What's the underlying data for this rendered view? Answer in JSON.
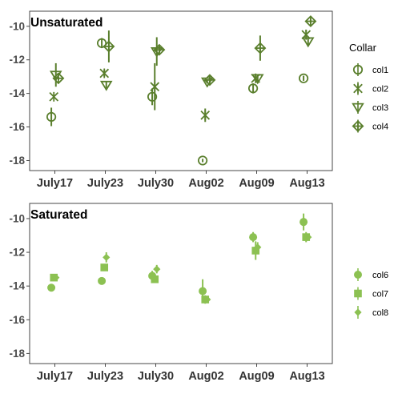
{
  "chart_data": [
    {
      "type": "scatter",
      "title": "Unsaturated",
      "xlabel": "",
      "ylabel": "",
      "categories": [
        "July17",
        "July23",
        "July30",
        "Aug02",
        "Aug09",
        "Aug13"
      ],
      "ylim": [
        -18.6,
        -9.1
      ],
      "yticks": [
        -18,
        -16,
        -14,
        -12,
        -10
      ],
      "ytick_labels": [
        "-18",
        "-16",
        "-14",
        "-12",
        "-10"
      ],
      "grid": false,
      "color": "#5a7f2d",
      "legend": {
        "title": "Collar",
        "position": "right"
      },
      "series": [
        {
          "name": "col1",
          "marker": "circle-open",
          "values": [
            -15.4,
            -11.0,
            -14.2,
            -18.0,
            -13.7,
            -13.1
          ],
          "err": [
            0.55,
            0.3,
            0.5,
            0.1,
            0.3,
            0.15
          ]
        },
        {
          "name": "col2",
          "marker": "asterisk",
          "values": [
            -14.2,
            -12.8,
            -13.6,
            -15.3,
            -13.1,
            -10.5
          ],
          "err": [
            0.1,
            0.2,
            1.4,
            0.4,
            0.2,
            0.3
          ]
        },
        {
          "name": "col3",
          "marker": "triangle-down-open",
          "values": [
            -12.9,
            -13.5,
            -11.5,
            -13.3,
            -13.1,
            -10.9
          ],
          "err": [
            0.7,
            0.2,
            0.85,
            0.1,
            0.2,
            0.2
          ]
        },
        {
          "name": "col4",
          "marker": "diamond-plus",
          "values": [
            -13.1,
            -11.2,
            -11.4,
            -13.2,
            -11.3,
            -9.7
          ],
          "err": [
            0.1,
            0.95,
            0.2,
            0.1,
            0.75,
            0.1
          ]
        }
      ]
    },
    {
      "type": "scatter",
      "title": "Saturated",
      "xlabel": "",
      "ylabel": "",
      "categories": [
        "July17",
        "July23",
        "July30",
        "Aug02",
        "Aug09",
        "Aug13"
      ],
      "ylim": [
        -18.6,
        -9.1
      ],
      "yticks": [
        -18,
        -16,
        -14,
        -12,
        -10
      ],
      "ytick_labels": [
        "-18",
        "-16",
        "-14",
        "-12",
        "-10"
      ],
      "grid": false,
      "color": "#8cc152",
      "legend": {
        "title": "",
        "position": "right"
      },
      "series": [
        {
          "name": "col6",
          "marker": "circle-filled",
          "values": [
            -14.1,
            -13.7,
            -13.4,
            -14.3,
            -11.1,
            -10.2
          ],
          "err": [
            0.1,
            0.1,
            0.3,
            0.7,
            0.3,
            0.5
          ]
        },
        {
          "name": "col7",
          "marker": "square-filled",
          "values": [
            -13.5,
            -12.9,
            -13.6,
            -14.8,
            -11.9,
            -11.1
          ],
          "err": [
            0.1,
            0.2,
            0.2,
            0.25,
            0.55,
            0.3
          ]
        },
        {
          "name": "col8",
          "marker": "diamond-filled",
          "values": [
            -13.5,
            -12.3,
            -13.0,
            -14.8,
            -11.7,
            -11.1
          ],
          "err": [
            0.1,
            0.3,
            0.25,
            0.1,
            0.3,
            0.1
          ]
        }
      ]
    }
  ]
}
